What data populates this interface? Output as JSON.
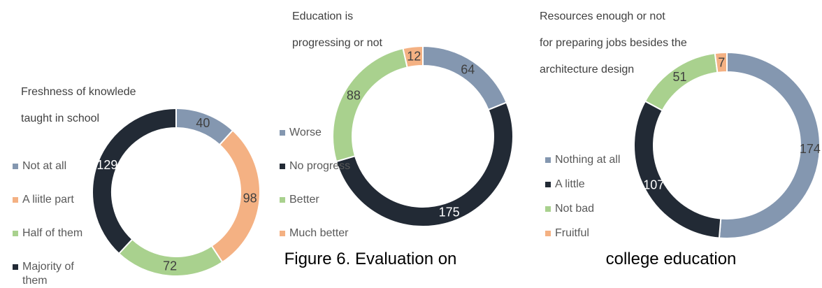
{
  "caption": [
    "Figure 6. Evaluation on",
    "college education"
  ],
  "chart_data": [
    {
      "type": "donut",
      "title": [
        "Freshness of  knowlede",
        "taught in school"
      ],
      "categories": [
        "Not at all",
        "A liitle part",
        "Half of them",
        "Majority of them"
      ],
      "values": [
        40,
        98,
        72,
        129
      ],
      "colors": [
        "#8497b0",
        "#f4b183",
        "#a9d18e",
        "#222a35"
      ],
      "legend": "left"
    },
    {
      "type": "donut",
      "title": [
        "Education is",
        "progressing or not"
      ],
      "categories": [
        "Worse",
        "No progress",
        "Better",
        "Much better"
      ],
      "values": [
        64,
        175,
        88,
        12
      ],
      "colors": [
        "#8497b0",
        "#222a35",
        "#a9d18e",
        "#f4b183"
      ],
      "legend": "left"
    },
    {
      "type": "donut",
      "title": [
        "Resources enough or not",
        "for preparing jobs besides the",
        "architecture design"
      ],
      "categories": [
        "Nothing at all",
        "A little",
        "Not bad",
        "Fruitful"
      ],
      "values": [
        174,
        107,
        51,
        7
      ],
      "colors": [
        "#8497b0",
        "#222a35",
        "#a9d18e",
        "#f4b183"
      ],
      "legend": "left"
    }
  ]
}
